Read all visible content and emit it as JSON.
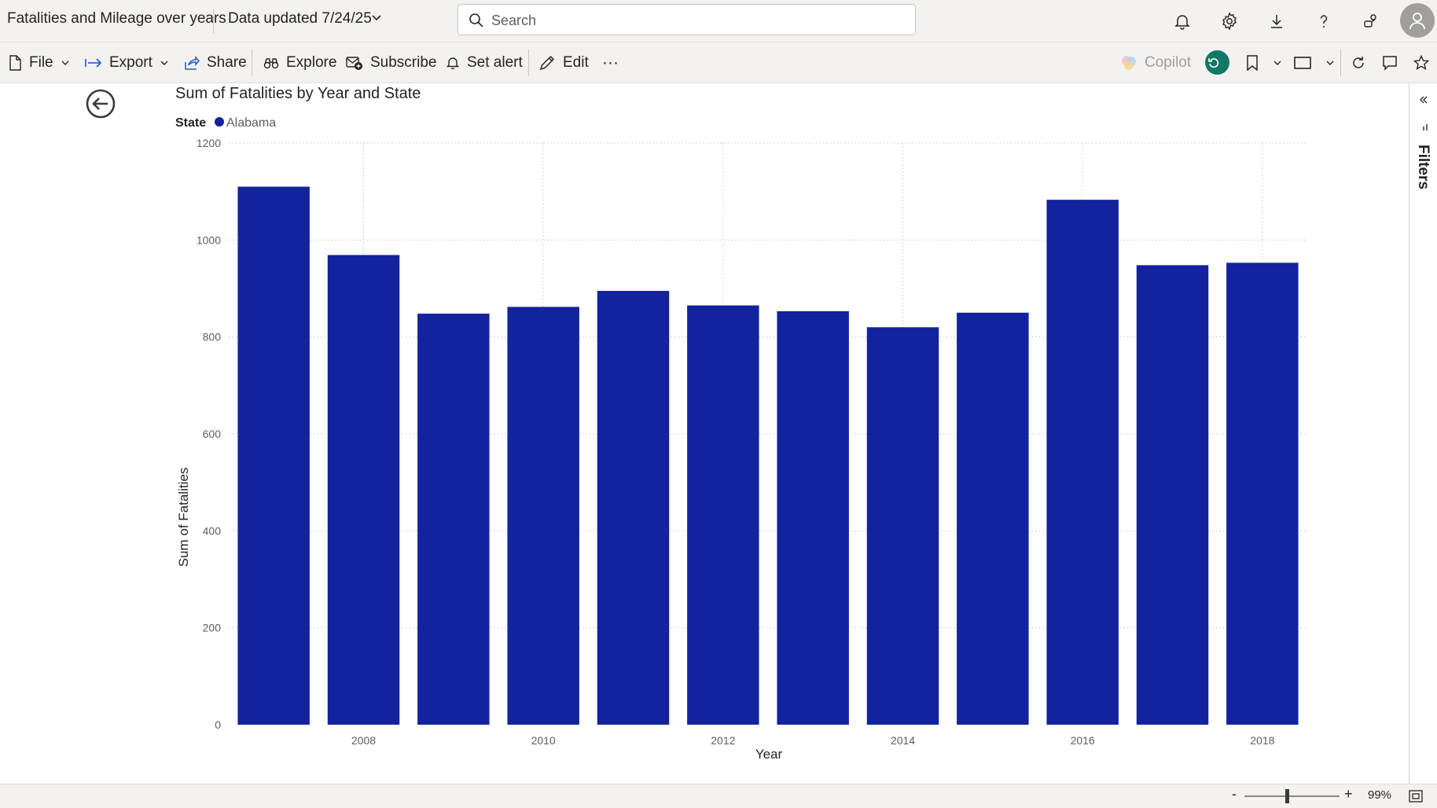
{
  "header": {
    "report_title": "Fatalities and Mileage over years",
    "data_updated": "Data updated 7/24/25",
    "search_placeholder": "Search"
  },
  "toolbar": {
    "file": "File",
    "export": "Export",
    "share": "Share",
    "explore": "Explore",
    "subscribe": "Subscribe",
    "set_alert": "Set alert",
    "edit": "Edit",
    "more": "···",
    "copilot": "Copilot"
  },
  "filters_pane": {
    "label": "Filters"
  },
  "status": {
    "zoom_minus": "-",
    "zoom_plus": "+",
    "zoom_level": "99%",
    "zoom_fraction": 0.45
  },
  "colors": {
    "bar": "#13239d",
    "chrome": "#f3f2f1",
    "copilot_badge": "#117865"
  },
  "chart_data": {
    "type": "bar",
    "title": "Sum of Fatalities by Year and State",
    "legend_title": "State",
    "legend_position": "top-left",
    "series": [
      {
        "name": "Alabama",
        "color": "#13239d",
        "values": [
          1110,
          969,
          848,
          862,
          895,
          865,
          853,
          820,
          850,
          1083,
          948,
          953
        ]
      }
    ],
    "categories": [
      2007,
      2008,
      2009,
      2010,
      2011,
      2012,
      2013,
      2014,
      2015,
      2016,
      2017,
      2018
    ],
    "xticks": [
      2008,
      2010,
      2012,
      2014,
      2016,
      2018
    ],
    "yticks": [
      0,
      200,
      400,
      600,
      800,
      1000,
      1200
    ],
    "ylim": [
      0,
      1200
    ],
    "xlabel": "Year",
    "ylabel": "Sum of Fatalities",
    "grid": true
  }
}
